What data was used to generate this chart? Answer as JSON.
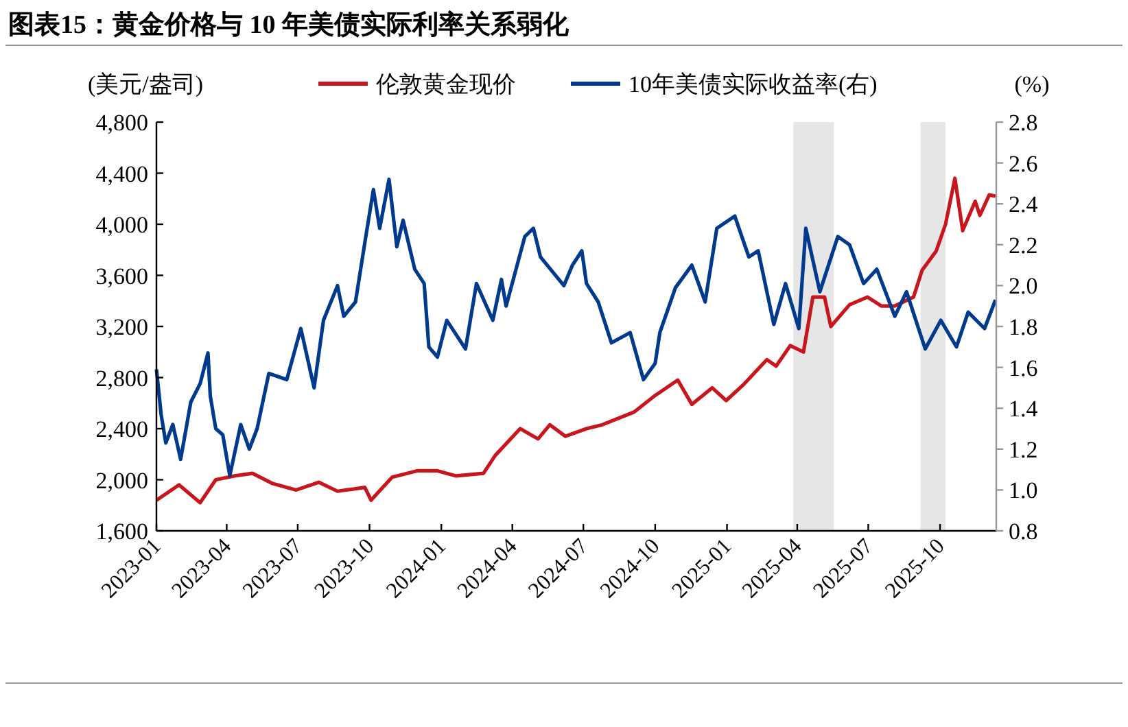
{
  "chart_data": {
    "type": "line",
    "title": "图表15：黄金价格与 10 年美债实际利率关系弱化",
    "ylabel": "(美元/盎司)",
    "y2label": "(%)",
    "xlim": [
      "2023-01-01",
      "2025-12-12"
    ],
    "xticks": [
      "2023-01",
      "2023-04",
      "2023-07",
      "2023-10",
      "2024-01",
      "2024-04",
      "2024-07",
      "2024-10",
      "2025-01",
      "2025-04",
      "2025-07",
      "2025-10"
    ],
    "ylim": [
      1600,
      4800
    ],
    "yticks": [
      {
        "value": 1600,
        "label": "1,600"
      },
      {
        "value": 2000,
        "label": "2,000"
      },
      {
        "value": 2400,
        "label": "2,400"
      },
      {
        "value": 2800,
        "label": "2,800"
      },
      {
        "value": 3200,
        "label": "3,200"
      },
      {
        "value": 3600,
        "label": "3,600"
      },
      {
        "value": 4000,
        "label": "4,000"
      },
      {
        "value": 4400,
        "label": "4,400"
      },
      {
        "value": 4800,
        "label": "4,800"
      }
    ],
    "y2lim": [
      0.8,
      2.8
    ],
    "y2ticks": [
      {
        "value": 0.8,
        "label": "0.8"
      },
      {
        "value": 1.0,
        "label": "1.0"
      },
      {
        "value": 1.2,
        "label": "1.2"
      },
      {
        "value": 1.4,
        "label": "1.4"
      },
      {
        "value": 1.6,
        "label": "1.6"
      },
      {
        "value": 1.8,
        "label": "1.8"
      },
      {
        "value": 2.0,
        "label": "2.0"
      },
      {
        "value": 2.2,
        "label": "2.2"
      },
      {
        "value": 2.4,
        "label": "2.4"
      },
      {
        "value": 2.6,
        "label": "2.6"
      },
      {
        "value": 2.8,
        "label": "2.8"
      }
    ],
    "legend": "top",
    "bands": [
      {
        "axis": "x",
        "from": "2025-03-27",
        "to": "2025-05-18",
        "color": "#e6e6e6"
      },
      {
        "axis": "x",
        "from": "2025-09-06",
        "to": "2025-10-08",
        "color": "#e6e6e6"
      }
    ],
    "series": [
      {
        "name": "伦敦黄金现价",
        "color": "#c8161e",
        "x": [
          "2023-01-01",
          "2023-01-30",
          "2023-02-26",
          "2023-03-18",
          "2023-04-11",
          "2023-05-04",
          "2023-05-30",
          "2023-06-29",
          "2023-07-28",
          "2023-08-21",
          "2023-09-25",
          "2023-10-03",
          "2023-10-30",
          "2023-12-01",
          "2023-12-27",
          "2024-01-20",
          "2024-02-24",
          "2024-03-10",
          "2024-04-11",
          "2024-05-04",
          "2024-05-19",
          "2024-06-08",
          "2024-07-05",
          "2024-07-25",
          "2024-09-04",
          "2024-10-01",
          "2024-10-30",
          "2024-11-17",
          "2024-12-13",
          "2024-12-31",
          "2025-01-23",
          "2025-02-21",
          "2025-03-05",
          "2025-03-23",
          "2025-04-09",
          "2025-04-21",
          "2025-05-06",
          "2025-05-14",
          "2025-06-07",
          "2025-06-30",
          "2025-07-18",
          "2025-08-04",
          "2025-08-28",
          "2025-09-08",
          "2025-09-26",
          "2025-10-08",
          "2025-10-20",
          "2025-10-30",
          "2025-11-15",
          "2025-11-21",
          "2025-12-03",
          "2025-12-11"
        ],
        "values": [
          1840,
          1960,
          1820,
          2000,
          2030,
          2050,
          1970,
          1920,
          1980,
          1910,
          1940,
          1840,
          2020,
          2070,
          2070,
          2030,
          2050,
          2190,
          2400,
          2320,
          2430,
          2340,
          2400,
          2430,
          2530,
          2660,
          2780,
          2590,
          2720,
          2620,
          2750,
          2940,
          2890,
          3050,
          3000,
          3430,
          3430,
          3200,
          3370,
          3430,
          3360,
          3360,
          3430,
          3640,
          3790,
          4000,
          4360,
          3950,
          4180,
          4070,
          4230,
          4220
        ]
      },
      {
        "name": "10年美债实际收益率(右)",
        "color": "#003a8c",
        "axis": "y2",
        "x": [
          "2023-01-01",
          "2023-01-07",
          "2023-01-13",
          "2023-01-22",
          "2023-02-01",
          "2023-02-14",
          "2023-02-26",
          "2023-03-08",
          "2023-03-11",
          "2023-03-18",
          "2023-03-27",
          "2023-04-05",
          "2023-04-19",
          "2023-04-30",
          "2023-05-10",
          "2023-05-25",
          "2023-06-17",
          "2023-07-05",
          "2023-07-22",
          "2023-08-03",
          "2023-08-21",
          "2023-08-29",
          "2023-09-13",
          "2023-09-25",
          "2023-10-06",
          "2023-10-14",
          "2023-10-26",
          "2023-11-05",
          "2023-11-13",
          "2023-11-28",
          "2023-12-10",
          "2023-12-16",
          "2023-12-27",
          "2024-01-08",
          "2024-02-01",
          "2024-02-15",
          "2024-03-07",
          "2024-03-18",
          "2024-03-24",
          "2024-04-17",
          "2024-04-28",
          "2024-05-07",
          "2024-06-06",
          "2024-06-17",
          "2024-06-29",
          "2024-07-05",
          "2024-07-20",
          "2024-08-06",
          "2024-08-30",
          "2024-09-16",
          "2024-10-01",
          "2024-10-07",
          "2024-10-27",
          "2024-11-17",
          "2024-12-04",
          "2024-12-19",
          "2025-01-11",
          "2025-01-29",
          "2025-02-10",
          "2025-03-02",
          "2025-03-17",
          "2025-04-03",
          "2025-04-12",
          "2025-04-30",
          "2025-05-23",
          "2025-06-07",
          "2025-06-25",
          "2025-07-12",
          "2025-08-04",
          "2025-08-19",
          "2025-09-12",
          "2025-10-02",
          "2025-10-22",
          "2025-11-06",
          "2025-11-27",
          "2025-12-11"
        ],
        "values": [
          1.59,
          1.37,
          1.23,
          1.32,
          1.15,
          1.43,
          1.52,
          1.67,
          1.46,
          1.3,
          1.27,
          1.07,
          1.32,
          1.2,
          1.3,
          1.57,
          1.54,
          1.79,
          1.5,
          1.83,
          2.0,
          1.85,
          1.92,
          2.21,
          2.47,
          2.28,
          2.52,
          2.19,
          2.32,
          2.08,
          2.01,
          1.7,
          1.65,
          1.83,
          1.69,
          2.01,
          1.83,
          2.03,
          1.9,
          2.24,
          2.28,
          2.14,
          2.0,
          2.1,
          2.17,
          2.01,
          1.92,
          1.72,
          1.77,
          1.54,
          1.62,
          1.77,
          1.99,
          2.1,
          1.92,
          2.28,
          2.34,
          2.14,
          2.17,
          1.81,
          2.01,
          1.79,
          2.28,
          1.97,
          2.24,
          2.2,
          2.01,
          2.08,
          1.85,
          1.97,
          1.69,
          1.83,
          1.7,
          1.87,
          1.79,
          1.93
        ]
      }
    ]
  }
}
